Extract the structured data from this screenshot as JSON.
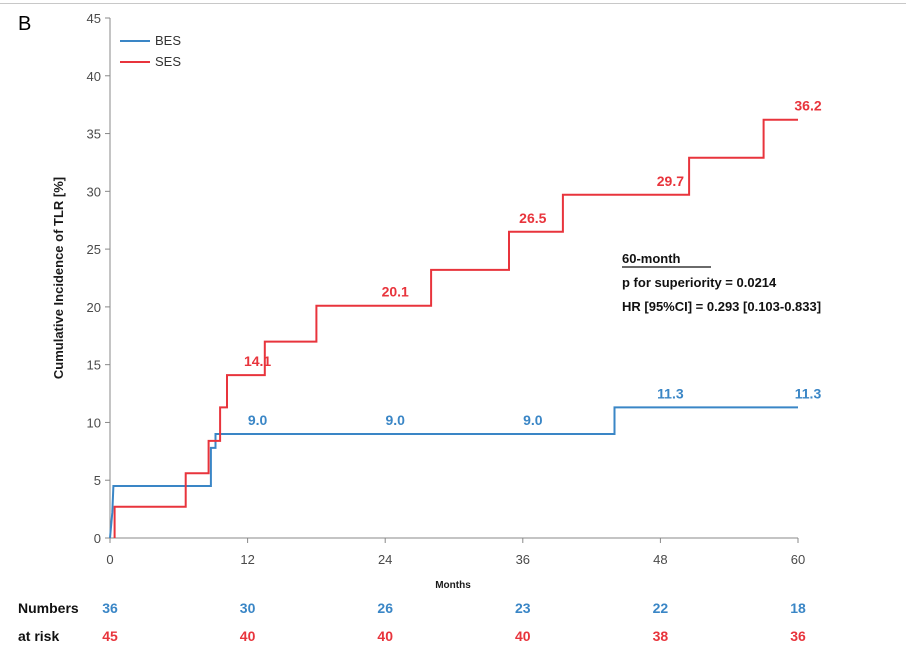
{
  "chart_data": {
    "type": "line",
    "panel_label": "B",
    "ylabel": "Cumulative Incidence of TLR [%]",
    "xlabel": "Months",
    "xlim": [
      0,
      60
    ],
    "ylim": [
      0,
      45
    ],
    "xticks": [
      0,
      12,
      24,
      36,
      48,
      60
    ],
    "yticks": [
      0,
      5,
      10,
      15,
      20,
      25,
      30,
      35,
      40,
      45
    ],
    "grid": false,
    "legend": "top-left",
    "series": [
      {
        "name": "BES",
        "color": "#3a86c6",
        "steps": [
          [
            0,
            0
          ],
          [
            0.2,
            2.2
          ],
          [
            0.3,
            4.5
          ],
          [
            8.8,
            4.5
          ],
          [
            8.8,
            7.8
          ],
          [
            9.2,
            7.8
          ],
          [
            9.2,
            9.0
          ],
          [
            44.0,
            9.0
          ],
          [
            44.0,
            11.3
          ],
          [
            60.0,
            11.3
          ]
        ],
        "labels": [
          {
            "x": 12,
            "y": 9.0,
            "text": "9.0"
          },
          {
            "x": 24,
            "y": 9.0,
            "text": "9.0"
          },
          {
            "x": 36,
            "y": 9.0,
            "text": "9.0"
          },
          {
            "x": 48,
            "y": 11.3,
            "text": "11.3"
          },
          {
            "x": 60,
            "y": 11.3,
            "text": "11.3"
          }
        ]
      },
      {
        "name": "SES",
        "color": "#e8343c",
        "steps": [
          [
            0.4,
            0
          ],
          [
            0.4,
            2.7
          ],
          [
            6.6,
            2.7
          ],
          [
            6.6,
            5.6
          ],
          [
            8.6,
            5.6
          ],
          [
            8.6,
            8.4
          ],
          [
            9.6,
            8.4
          ],
          [
            9.6,
            11.3
          ],
          [
            10.2,
            11.3
          ],
          [
            10.2,
            14.1
          ],
          [
            13.5,
            14.1
          ],
          [
            13.5,
            17.0
          ],
          [
            18.0,
            17.0
          ],
          [
            18.0,
            20.1
          ],
          [
            28.0,
            20.1
          ],
          [
            28.0,
            23.2
          ],
          [
            34.8,
            23.2
          ],
          [
            34.8,
            26.5
          ],
          [
            39.5,
            26.5
          ],
          [
            39.5,
            29.7
          ],
          [
            50.5,
            29.7
          ],
          [
            50.5,
            32.9
          ],
          [
            57.0,
            32.9
          ],
          [
            57.0,
            36.2
          ],
          [
            60.0,
            36.2
          ]
        ],
        "labels": [
          {
            "x": 12,
            "y": 14.1,
            "text": "14.1"
          },
          {
            "x": 24,
            "y": 20.1,
            "text": "20.1"
          },
          {
            "x": 36,
            "y": 26.5,
            "text": "26.5"
          },
          {
            "x": 48,
            "y": 29.7,
            "text": "29.7"
          },
          {
            "x": 60,
            "y": 36.2,
            "text": "36.2"
          }
        ]
      }
    ],
    "annotation": {
      "heading": "60-month",
      "line1": "p for superiority = 0.0214",
      "line2": "HR [95%CI] = 0.293 [0.103-0.833]"
    },
    "risk_table": {
      "header1": "Numbers",
      "header2": "at risk",
      "bes": [
        "36",
        "30",
        "26",
        "23",
        "22",
        "18"
      ],
      "ses": [
        "45",
        "40",
        "40",
        "40",
        "38",
        "36"
      ]
    }
  }
}
